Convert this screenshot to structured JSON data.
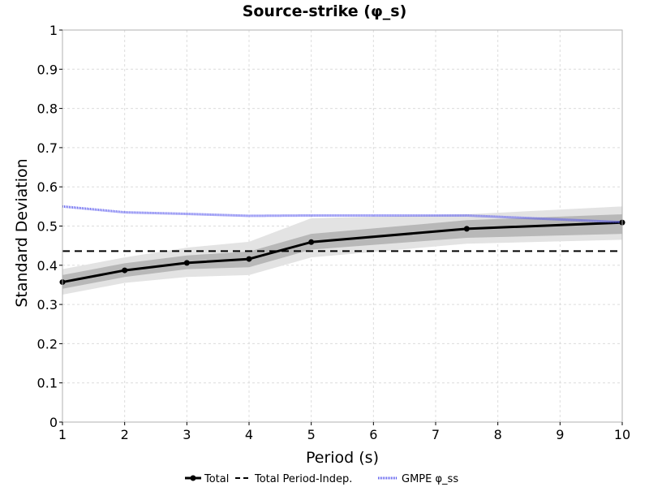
{
  "chart_data": {
    "type": "line",
    "title": "Source-strike (φ_s)",
    "xlabel": "Period (s)",
    "ylabel": "Standard Deviation",
    "xlim": [
      1,
      10
    ],
    "ylim": [
      0,
      1
    ],
    "xticks": [
      1,
      2,
      3,
      4,
      5,
      6,
      7,
      8,
      9,
      10
    ],
    "yticks": [
      0,
      0.1,
      0.2,
      0.3,
      0.4,
      0.5,
      0.6,
      0.7,
      0.8,
      0.9,
      1
    ],
    "grid": true,
    "legend_position": "bottom",
    "series": [
      {
        "name": "Total",
        "style": "solid-markers",
        "color": "#000000",
        "x": [
          1,
          2,
          3,
          4,
          5,
          7.5,
          10
        ],
        "y": [
          0.357,
          0.387,
          0.406,
          0.416,
          0.459,
          0.493,
          0.509
        ],
        "band_inner": {
          "lower": [
            0.34,
            0.37,
            0.39,
            0.395,
            0.44,
            0.47,
            0.48
          ],
          "upper": [
            0.375,
            0.405,
            0.425,
            0.435,
            0.48,
            0.515,
            0.53
          ],
          "color": "#b8b8b8"
        },
        "band_outer": {
          "lower": [
            0.325,
            0.355,
            0.37,
            0.375,
            0.42,
            0.455,
            0.465
          ],
          "upper": [
            0.39,
            0.42,
            0.445,
            0.46,
            0.52,
            0.53,
            0.55
          ],
          "color": "#e3e3e3"
        }
      },
      {
        "name": "Total Period-Indep.",
        "style": "dashed",
        "color": "#000000",
        "x": [
          1,
          10
        ],
        "y": [
          0.436,
          0.436
        ]
      },
      {
        "name": "GMPE φ_ss",
        "style": "dotted",
        "color": "#5555ee",
        "x": [
          1,
          2,
          3,
          4,
          5,
          7.5,
          10
        ],
        "y": [
          0.55,
          0.535,
          0.531,
          0.526,
          0.527,
          0.527,
          0.51
        ]
      }
    ]
  }
}
